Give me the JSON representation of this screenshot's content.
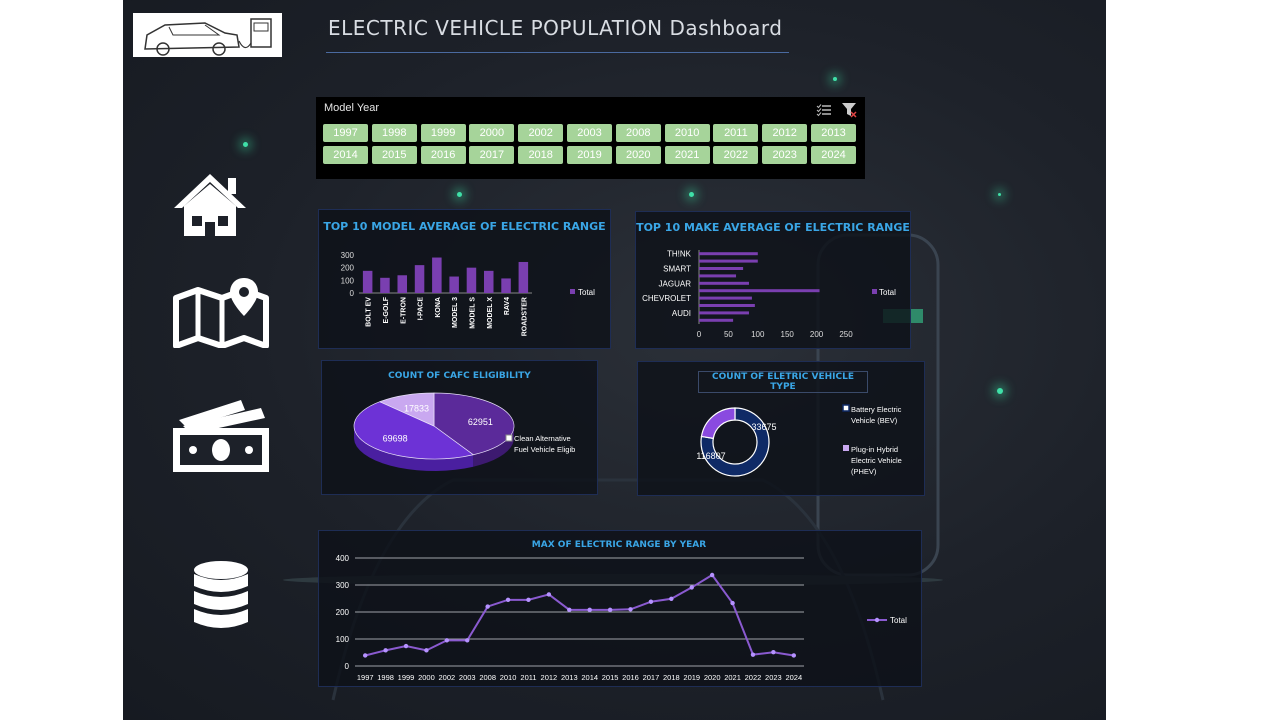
{
  "header": {
    "title": "ELECTRIC VEHICLE POPULATION Dashboard"
  },
  "nav": {
    "icons": [
      "home-icon",
      "map-location-icon",
      "money-icon",
      "database-icon"
    ]
  },
  "slicer": {
    "title": "Model Year",
    "years": [
      "1997",
      "1998",
      "1999",
      "2000",
      "2002",
      "2003",
      "2008",
      "2010",
      "2011",
      "2012",
      "2013",
      "2014",
      "2015",
      "2016",
      "2017",
      "2018",
      "2019",
      "2020",
      "2021",
      "2022",
      "2023",
      "2024"
    ]
  },
  "charts": {
    "model_range": {
      "title": "TOP 10 MODEL AVERAGE OF ELECTRIC RANGE",
      "legend": "Total",
      "ticks": [
        "0",
        "100",
        "200",
        "300"
      ]
    },
    "make_range": {
      "title": "TOP 10 MAKE AVERAGE OF ELECTRIC RANGE",
      "legend": "Total",
      "ticks": [
        "0",
        "50",
        "100",
        "150",
        "200",
        "250"
      ],
      "visible_labels": [
        "TH!NK",
        "SMART",
        "JAGUAR",
        "CHEVROLET",
        "AUDI"
      ]
    },
    "cafc": {
      "title": "COUNT OF CAFC ELIGIBILITY",
      "legend": "Clean Alternative Fuel Vehicle Eligib"
    },
    "ev_type": {
      "title": "COUNT OF ELETRIC VEHICLE TYPE",
      "legend": [
        "Battery Electric Vehicle (BEV)",
        "Plug-in Hybrid Electric Vehicle (PHEV)"
      ]
    },
    "year_range": {
      "title": "MAX OF ELECTRIC RANGE BY YEAR",
      "legend": "Total",
      "ticks": [
        "0",
        "100",
        "200",
        "300",
        "400"
      ]
    }
  },
  "chart_data": [
    {
      "type": "bar",
      "title": "TOP 10 MODEL AVERAGE OF ELECTRIC RANGE",
      "categories": [
        "BOLT EV",
        "E-GOLF",
        "E-TRON",
        "I-PACE",
        "KONA",
        "MODEL 3",
        "MODEL S",
        "MODEL X",
        "RAV4",
        "ROADSTER"
      ],
      "series": [
        {
          "name": "Total",
          "values": [
            175,
            120,
            140,
            220,
            280,
            130,
            200,
            175,
            115,
            245
          ]
        }
      ],
      "ylim": [
        0,
        300
      ],
      "color": "#7a3fb0"
    },
    {
      "type": "bar",
      "orientation": "horizontal",
      "title": "TOP 10 MAKE AVERAGE OF ELECTRIC RANGE",
      "categories": [
        "TH!NK",
        "",
        "SMART",
        "",
        "JAGUAR",
        "",
        "CHEVROLET",
        "",
        "AUDI",
        ""
      ],
      "series": [
        {
          "name": "Total",
          "values": [
            100,
            100,
            75,
            63,
            85,
            205,
            90,
            95,
            85,
            58
          ]
        }
      ],
      "xlim": [
        0,
        250
      ],
      "color": "#7a3fb0"
    },
    {
      "type": "pie",
      "title": "COUNT OF CAFC ELIGIBILITY",
      "labels": [
        "",
        "",
        ""
      ],
      "values": [
        62951,
        69698,
        17833
      ],
      "colors": [
        "#5b2a9a",
        "#6d32d6",
        "#c9a8f0"
      ]
    },
    {
      "type": "pie",
      "style": "donut",
      "title": "COUNT OF ELETRIC VEHICLE TYPE",
      "labels": [
        "Battery Electric Vehicle (BEV)",
        "Plug-in Hybrid Electric Vehicle (PHEV)"
      ],
      "values": [
        116807,
        33675
      ],
      "colors": [
        "#0f2a66",
        "#8a4ae0"
      ]
    },
    {
      "type": "line",
      "title": "MAX OF ELECTRIC RANGE BY YEAR",
      "x": [
        "1997",
        "1998",
        "1999",
        "2000",
        "2002",
        "2003",
        "2008",
        "2010",
        "2011",
        "2012",
        "2013",
        "2014",
        "2015",
        "2016",
        "2017",
        "2018",
        "2019",
        "2020",
        "2021",
        "2022",
        "2023",
        "2024"
      ],
      "series": [
        {
          "name": "Total",
          "values": [
            39,
            58,
            74,
            58,
            95,
            95,
            220,
            245,
            245,
            265,
            208,
            208,
            208,
            210,
            238,
            249,
            291,
            337,
            233,
            42,
            51,
            39
          ]
        }
      ],
      "ylim": [
        0,
        400
      ],
      "grid": true,
      "legend": "right",
      "color": "#8a5ad0"
    }
  ]
}
